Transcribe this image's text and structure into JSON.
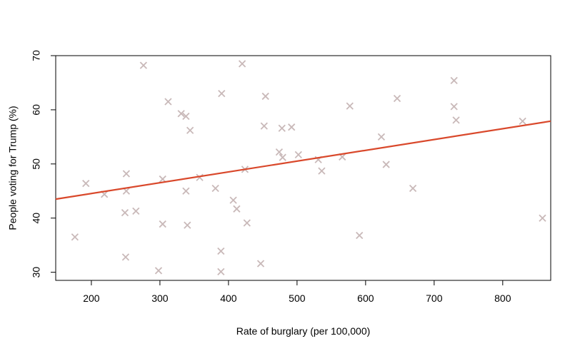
{
  "chart_data": {
    "type": "scatter",
    "title": "",
    "xlabel": "Rate of burglary (per 100,000)",
    "ylabel": "People voting for Trump (%)",
    "xlim": [
      148,
      870
    ],
    "ylim": [
      28.5,
      70
    ],
    "xticks": [
      200,
      300,
      400,
      500,
      600,
      700,
      800
    ],
    "yticks": [
      30,
      40,
      50,
      60,
      70
    ],
    "marker": "x",
    "point_color": "#c9b9b9",
    "line_color": "#d9482b",
    "grid": false,
    "legend": "none",
    "points": [
      {
        "x": 176,
        "y": 36.5
      },
      {
        "x": 192,
        "y": 46.4
      },
      {
        "x": 219,
        "y": 44.4
      },
      {
        "x": 249,
        "y": 41.0
      },
      {
        "x": 250,
        "y": 32.8
      },
      {
        "x": 251,
        "y": 48.2
      },
      {
        "x": 251,
        "y": 45.0
      },
      {
        "x": 265,
        "y": 41.3
      },
      {
        "x": 276,
        "y": 68.2
      },
      {
        "x": 298,
        "y": 30.3
      },
      {
        "x": 304,
        "y": 38.9
      },
      {
        "x": 304,
        "y": 47.2
      },
      {
        "x": 312,
        "y": 61.5
      },
      {
        "x": 331,
        "y": 59.3
      },
      {
        "x": 338,
        "y": 58.8
      },
      {
        "x": 338,
        "y": 45.0
      },
      {
        "x": 340,
        "y": 38.7
      },
      {
        "x": 344,
        "y": 56.2
      },
      {
        "x": 358,
        "y": 47.5
      },
      {
        "x": 381,
        "y": 45.5
      },
      {
        "x": 389,
        "y": 33.9
      },
      {
        "x": 389,
        "y": 30.1
      },
      {
        "x": 390,
        "y": 63.0
      },
      {
        "x": 407,
        "y": 43.3
      },
      {
        "x": 412,
        "y": 41.7
      },
      {
        "x": 420,
        "y": 68.5
      },
      {
        "x": 424,
        "y": 49.0
      },
      {
        "x": 427,
        "y": 39.1
      },
      {
        "x": 447,
        "y": 31.6
      },
      {
        "x": 452,
        "y": 57.0
      },
      {
        "x": 454,
        "y": 62.5
      },
      {
        "x": 474,
        "y": 52.2
      },
      {
        "x": 478,
        "y": 56.6
      },
      {
        "x": 479,
        "y": 51.2
      },
      {
        "x": 492,
        "y": 56.8
      },
      {
        "x": 502,
        "y": 51.7
      },
      {
        "x": 531,
        "y": 50.8
      },
      {
        "x": 536,
        "y": 48.7
      },
      {
        "x": 566,
        "y": 51.3
      },
      {
        "x": 577,
        "y": 60.7
      },
      {
        "x": 591,
        "y": 36.8
      },
      {
        "x": 623,
        "y": 55.0
      },
      {
        "x": 630,
        "y": 49.9
      },
      {
        "x": 646,
        "y": 62.1
      },
      {
        "x": 669,
        "y": 45.5
      },
      {
        "x": 729,
        "y": 65.4
      },
      {
        "x": 729,
        "y": 60.6
      },
      {
        "x": 732,
        "y": 58.1
      },
      {
        "x": 829,
        "y": 57.9
      },
      {
        "x": 858,
        "y": 40.0
      }
    ],
    "trendline": {
      "x": [
        148,
        870
      ],
      "y": [
        43.5,
        57.9
      ]
    }
  }
}
